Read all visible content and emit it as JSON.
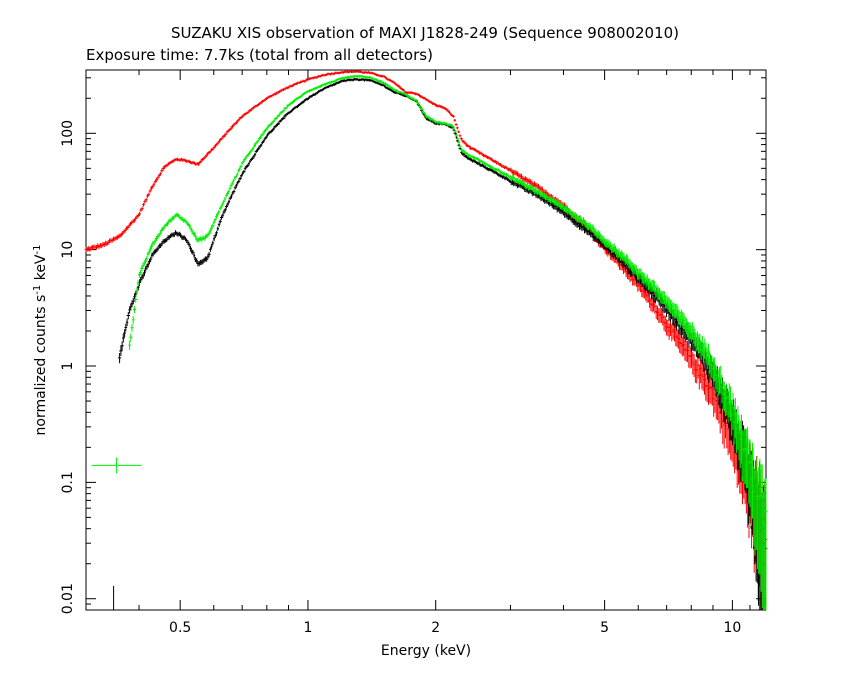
{
  "chart_data": {
    "type": "scatter",
    "title": "SUZAKU XIS observation of MAXI J1828-249 (Sequence 908002010)",
    "subtitle": "Exposure time: 7.7ks (total from all detectors)",
    "xlabel": "Energy (keV)",
    "ylabel_parts": {
      "main": "normalized counts s",
      "exp1": "-1",
      "mid": " keV",
      "exp2": "-1"
    },
    "x_scale": "log",
    "y_scale": "log",
    "xlim": [
      0.3,
      12
    ],
    "ylim": [
      0.008,
      350
    ],
    "x_ticks": [
      {
        "value": 0.5,
        "label": "0.5"
      },
      {
        "value": 1,
        "label": "1"
      },
      {
        "value": 2,
        "label": "2"
      },
      {
        "value": 5,
        "label": "5"
      },
      {
        "value": 10,
        "label": "10"
      }
    ],
    "y_ticks": [
      {
        "value": 0.01,
        "label": "0.01"
      },
      {
        "value": 0.1,
        "label": "0.1"
      },
      {
        "value": 1,
        "label": "1"
      },
      {
        "value": 10,
        "label": "10"
      },
      {
        "value": 100,
        "label": "100"
      }
    ],
    "series": [
      {
        "color": "#ff0000",
        "x": [
          0.3,
          0.33,
          0.36,
          0.4,
          0.43,
          0.46,
          0.49,
          0.52,
          0.55,
          0.6,
          0.65,
          0.7,
          0.8,
          0.9,
          1.0,
          1.1,
          1.2,
          1.3,
          1.4,
          1.5,
          1.6,
          1.7,
          1.8,
          1.9,
          2.0,
          2.1,
          2.2,
          2.3,
          2.4,
          2.5,
          3.0,
          3.5,
          4.0,
          4.5,
          5.0,
          5.5,
          6.0,
          6.5,
          7.0,
          8.0,
          9.0,
          10.0,
          11.0,
          12.0
        ],
        "y": [
          10,
          11,
          13,
          20,
          35,
          52,
          60,
          58,
          54,
          75,
          105,
          140,
          200,
          250,
          290,
          320,
          335,
          340,
          330,
          310,
          270,
          225,
          220,
          195,
          175,
          165,
          140,
          88,
          76,
          70,
          48,
          34,
          24,
          16,
          10.5,
          7.2,
          5.0,
          3.4,
          2.3,
          1.15,
          0.6,
          0.25,
          0.11,
          0.045
        ]
      },
      {
        "color": "#000000",
        "x": [
          0.36,
          0.37,
          0.38,
          0.4,
          0.43,
          0.46,
          0.49,
          0.52,
          0.55,
          0.58,
          0.6,
          0.63,
          0.7,
          0.8,
          0.9,
          1.0,
          1.1,
          1.2,
          1.3,
          1.4,
          1.5,
          1.6,
          1.7,
          1.8,
          1.9,
          2.0,
          2.1,
          2.2,
          2.3,
          2.4,
          2.5,
          3.0,
          3.5,
          4.0,
          4.5,
          5.0,
          5.5,
          6.0,
          6.5,
          7.0,
          8.0,
          9.0,
          10.0,
          11.0,
          12.0
        ],
        "y": [
          1.2,
          2.0,
          3.0,
          5.0,
          9,
          12,
          14,
          12,
          7.5,
          8.5,
          12,
          20,
          45,
          95,
          150,
          200,
          245,
          280,
          292,
          285,
          260,
          225,
          210,
          190,
          135,
          122,
          120,
          112,
          68,
          60,
          56,
          39,
          29,
          21,
          15,
          11,
          8.0,
          5.8,
          4.3,
          3.2,
          1.75,
          0.9,
          0.35,
          0.12,
          0.04
        ]
      },
      {
        "color": "#00ee00",
        "x": [
          0.38,
          0.4,
          0.43,
          0.46,
          0.49,
          0.52,
          0.55,
          0.58,
          0.6,
          0.63,
          0.7,
          0.8,
          0.9,
          1.0,
          1.1,
          1.2,
          1.3,
          1.4,
          1.5,
          1.6,
          1.7,
          1.8,
          1.9,
          2.0,
          2.1,
          2.2,
          2.3,
          2.4,
          2.5,
          3.0,
          3.5,
          4.0,
          4.5,
          5.0,
          5.5,
          6.0,
          6.5,
          7.0,
          8.0,
          9.0,
          10.0,
          11.0,
          12.0
        ],
        "y": [
          1.5,
          6,
          11,
          16,
          20,
          17,
          12,
          13,
          17,
          25,
          55,
          110,
          175,
          230,
          265,
          295,
          310,
          300,
          275,
          235,
          215,
          190,
          140,
          125,
          122,
          115,
          72,
          64,
          60,
          42,
          31,
          23,
          17,
          12,
          8.8,
          6.4,
          4.8,
          3.6,
          2.0,
          1.05,
          0.42,
          0.14,
          0.045
        ]
      }
    ],
    "outliers": [
      {
        "color": "#00ee00",
        "x": 0.36,
        "y": 0.14
      },
      {
        "color": "#000000",
        "x": 0.36,
        "y": 0.011
      }
    ]
  }
}
